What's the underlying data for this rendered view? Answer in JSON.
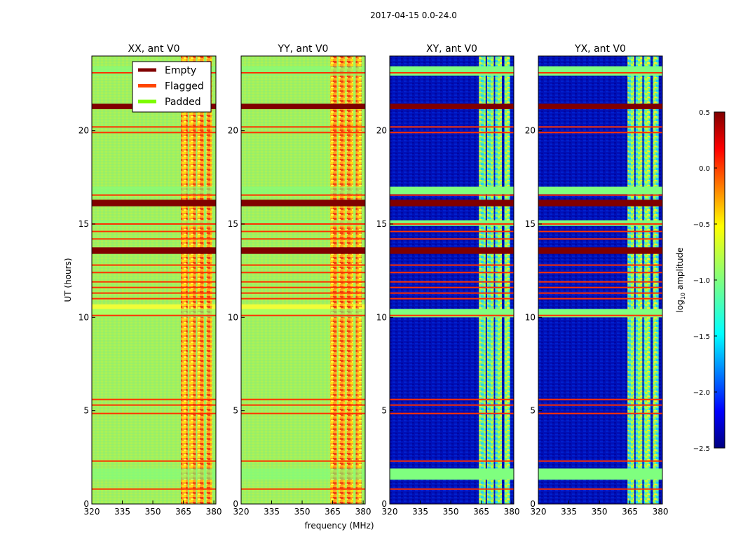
{
  "chart_data": {
    "type": "heatmap",
    "title": "2017-04-15 0.0-24.0",
    "xlabel": "frequency (MHz)",
    "ylabel": "UT (hours)",
    "xlim": [
      320,
      381
    ],
    "ylim": [
      0,
      24
    ],
    "xticks": [
      "320",
      "335",
      "350",
      "365",
      "380"
    ],
    "yticks": [
      "0",
      "5",
      "10",
      "15",
      "20"
    ],
    "panels": [
      {
        "title": "XX, ant V0",
        "mode": "auto"
      },
      {
        "title": "YY, ant V0",
        "mode": "auto"
      },
      {
        "title": "XY, ant V0",
        "mode": "cross"
      },
      {
        "title": "YX, ant V0",
        "mode": "cross"
      }
    ],
    "legend": {
      "placement": "top-right of first panel",
      "entries": [
        {
          "label": "Empty",
          "color": "#800000"
        },
        {
          "label": "Flagged",
          "color": "#ff4500"
        },
        {
          "label": "Padded",
          "color": "#7cfc00"
        }
      ]
    },
    "colorbar": {
      "label": "log",
      "label_sub": "10",
      "label_rest": " amplitude",
      "min": -2.5,
      "max": 0.5,
      "ticks": [
        "0.5",
        "0.0",
        "−0.5",
        "−1.0",
        "−1.5",
        "−2.0",
        "−2.5"
      ],
      "colormap": "jet"
    },
    "signal_bands_mhz": [
      [
        363.5,
        367.5
      ],
      [
        367.5,
        371.5
      ],
      [
        371.5,
        375.5
      ],
      [
        376,
        379.5
      ]
    ],
    "flagged_rows_hours": [
      0.8,
      2.3,
      4.85,
      5.3,
      5.6,
      10.1,
      11.0,
      11.3,
      11.6,
      11.9,
      12.4,
      12.8,
      14.2,
      14.6,
      15.0,
      16.55,
      19.9,
      20.2,
      23.1
    ],
    "empty_rows_hours": [
      [
        13.4,
        13.75
      ],
      [
        15.95,
        16.3
      ],
      [
        21.15,
        21.45
      ]
    ],
    "padded_rows_hours": [
      [
        1.3,
        1.9
      ],
      [
        10.0,
        10.45
      ],
      [
        14.9,
        15.2
      ],
      [
        16.6,
        17.0
      ],
      [
        22.95,
        23.45
      ]
    ]
  }
}
